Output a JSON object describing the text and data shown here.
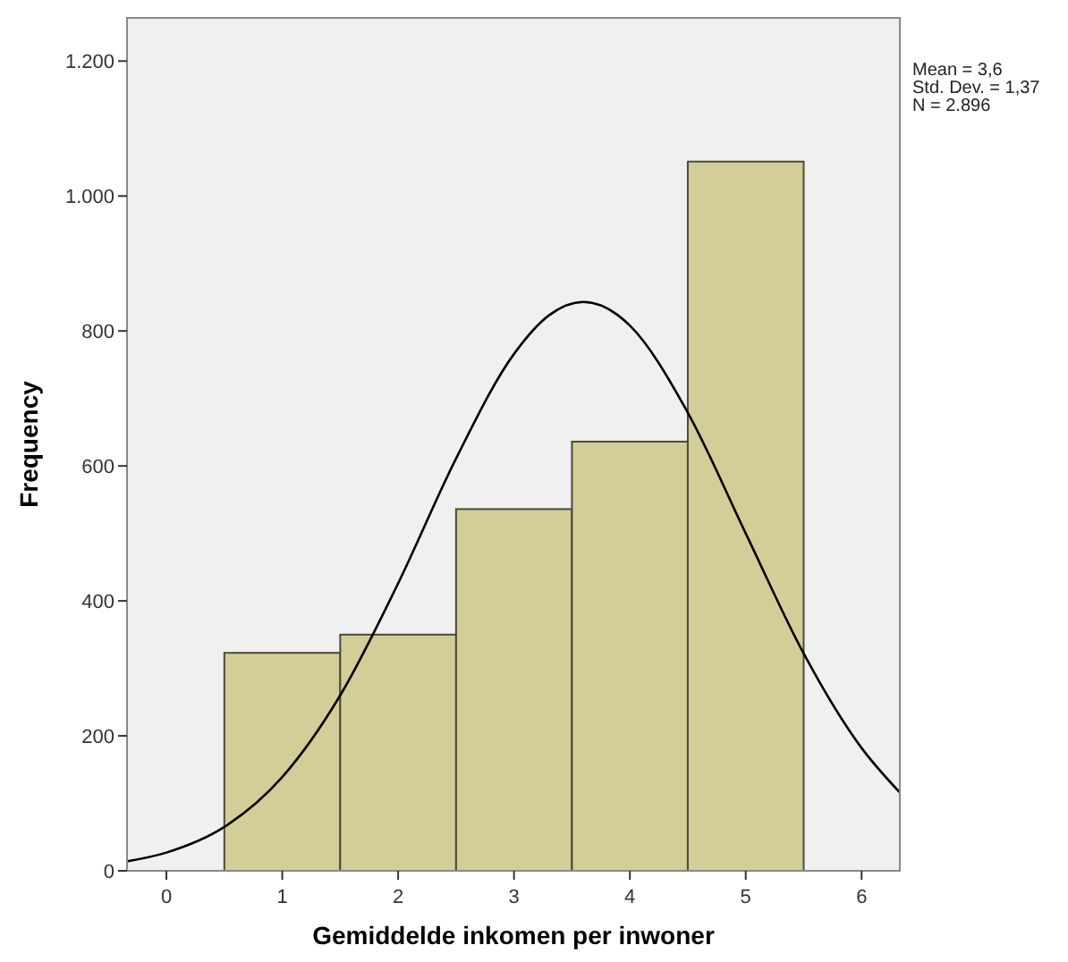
{
  "chart_data": {
    "type": "histogram",
    "xlabel": "Gemiddelde inkomen per inwoner",
    "ylabel": "Frequency",
    "bins": [
      0.5,
      1.5,
      2.5,
      3.5,
      4.5,
      5.5
    ],
    "series": [
      {
        "color": "#d3ce97",
        "values": [
          323,
          350,
          536,
          636,
          1051
        ]
      },
      {
        "type": "line",
        "color": "#000000",
        "x": [
          -0.34,
          0,
          0.5,
          1,
          1.5,
          2,
          2.5,
          3,
          3.3,
          3.6,
          3.9,
          4,
          4.5,
          5,
          5.5,
          6,
          6.33
        ],
        "values": [
          14,
          27,
          65,
          139,
          260,
          426,
          611,
          766,
          823,
          843,
          823,
          808,
          679,
          500,
          322,
          182,
          116
        ]
      }
    ],
    "xlim": [
      -0.34,
      6.33
    ],
    "xticks": [
      0,
      1,
      2,
      3,
      4,
      5,
      6
    ],
    "ylim": [
      0,
      1264
    ],
    "yticks": [
      0,
      200,
      400,
      600,
      800,
      {
        "value": 1000,
        "label": "1.000"
      },
      {
        "value": 1200,
        "label": "1.200"
      }
    ],
    "annotations": [
      "Mean = 3,6",
      "Std. Dev. = 1,37",
      "N = 2.896"
    ],
    "marker": "none",
    "line_style": "solid"
  }
}
